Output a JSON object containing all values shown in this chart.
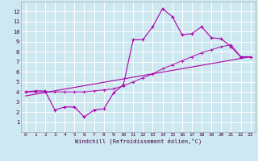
{
  "xlabel": "Windchill (Refroidissement éolien,°C)",
  "bg_color": "#cde8f0",
  "grid_color": "#ffffff",
  "line_color": "#aa00aa",
  "xlim": [
    -0.5,
    23.5
  ],
  "ylim": [
    0,
    13
  ],
  "xticks": [
    0,
    1,
    2,
    3,
    4,
    5,
    6,
    7,
    8,
    9,
    10,
    11,
    12,
    13,
    14,
    15,
    16,
    17,
    18,
    19,
    20,
    21,
    22,
    23
  ],
  "yticks": [
    1,
    2,
    3,
    4,
    5,
    6,
    7,
    8,
    9,
    10,
    11,
    12
  ],
  "series1_x": [
    0,
    1,
    2,
    3,
    4,
    5,
    6,
    7,
    8,
    9,
    10,
    11,
    12,
    13,
    14,
    15,
    16,
    17,
    18,
    19,
    20,
    21,
    22,
    23
  ],
  "series1_y": [
    4.0,
    4.1,
    4.1,
    2.2,
    2.5,
    2.5,
    1.5,
    2.2,
    2.3,
    3.9,
    4.7,
    9.2,
    9.2,
    10.5,
    12.3,
    11.5,
    9.7,
    9.8,
    10.5,
    9.4,
    9.3,
    8.5,
    7.5,
    7.5
  ],
  "series2_x": [
    0,
    1,
    2,
    3,
    4,
    5,
    6,
    7,
    8,
    9,
    10,
    11,
    12,
    13,
    14,
    15,
    16,
    17,
    18,
    19,
    20,
    21,
    22,
    23
  ],
  "series2_y": [
    4.0,
    4.0,
    4.0,
    4.0,
    4.0,
    4.0,
    4.0,
    4.1,
    4.2,
    4.3,
    4.6,
    5.0,
    5.4,
    5.8,
    6.3,
    6.7,
    7.1,
    7.5,
    7.9,
    8.2,
    8.5,
    8.7,
    7.5,
    7.5
  ],
  "series3_x": [
    0,
    23
  ],
  "series3_y": [
    3.6,
    7.5
  ]
}
